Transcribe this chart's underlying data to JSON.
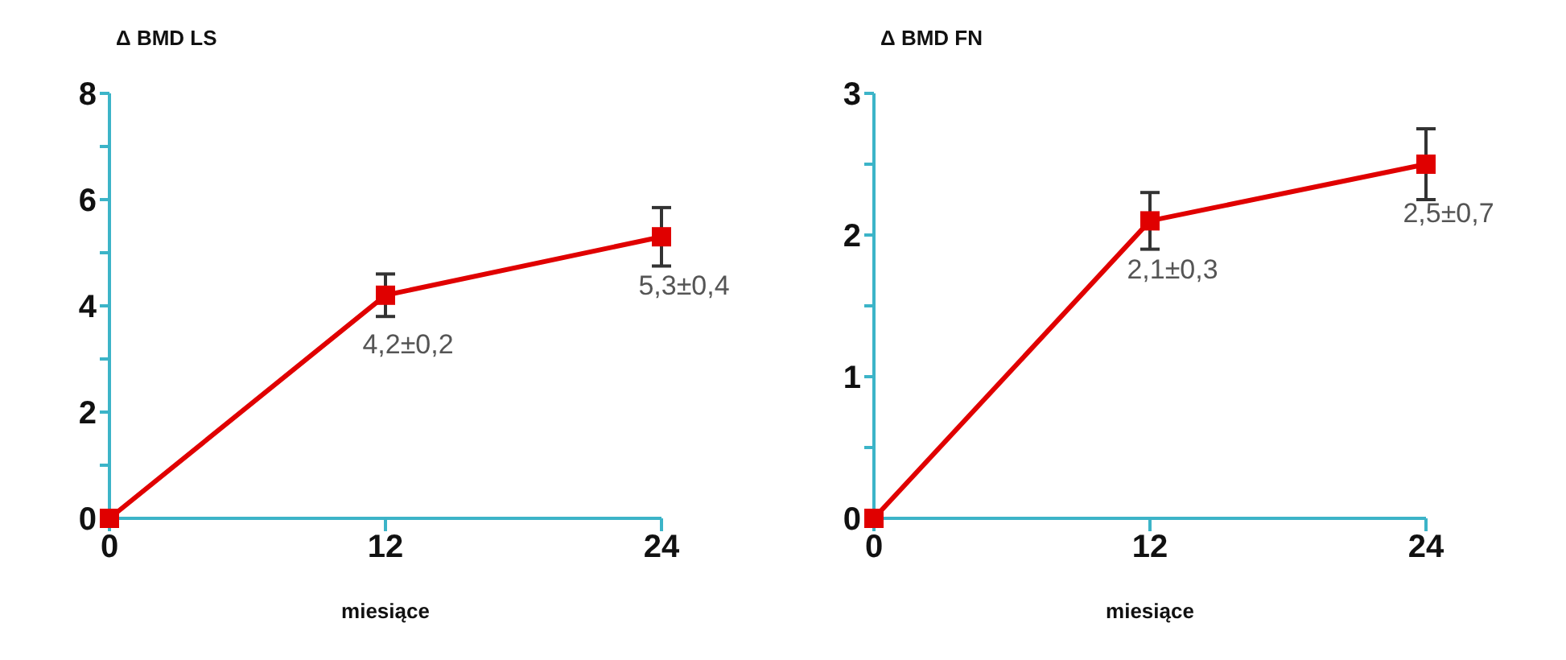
{
  "chart_data": [
    {
      "type": "line",
      "ylabel": "Δ BMD LS",
      "xlabel": "miesiące",
      "x": [
        0,
        12,
        24
      ],
      "xlim": [
        0,
        24
      ],
      "xticks": [
        0,
        12,
        24
      ],
      "ylim": [
        0,
        8
      ],
      "yticks": [
        0,
        {
          "value": 1,
          "label": null
        },
        2,
        {
          "value": 3,
          "label": null
        },
        4,
        {
          "value": 5,
          "label": null
        },
        6,
        {
          "value": 7,
          "label": null
        },
        8
      ],
      "grid": false,
      "marker": "square",
      "line_style": "solid",
      "series": [
        {
          "color": "#e00000",
          "values": [
            0,
            4.2,
            5.3
          ],
          "errors": [
            null,
            0.4,
            0.55
          ],
          "value_labels": [
            null,
            "4,2±0,2",
            "5,3±0,4"
          ]
        }
      ]
    },
    {
      "type": "line",
      "ylabel": "Δ BMD FN",
      "xlabel": "miesiące",
      "x": [
        0,
        12,
        24
      ],
      "xlim": [
        0,
        24
      ],
      "xticks": [
        0,
        12,
        24
      ],
      "ylim": [
        0,
        3
      ],
      "yticks": [
        0,
        {
          "value": 0.5,
          "label": null
        },
        1,
        {
          "value": 1.5,
          "label": null
        },
        2,
        {
          "value": 2.5,
          "label": null
        },
        3
      ],
      "grid": false,
      "marker": "square",
      "line_style": "solid",
      "series": [
        {
          "color": "#e00000",
          "values": [
            0,
            2.1,
            2.5
          ],
          "errors": [
            null,
            0.2,
            0.25
          ],
          "value_labels": [
            null,
            "2,1±0,3",
            "2,5±0,7"
          ]
        }
      ]
    }
  ]
}
